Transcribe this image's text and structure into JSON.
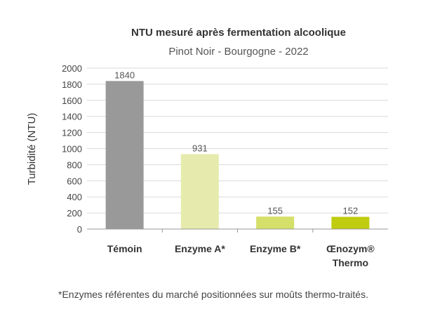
{
  "chart_data": {
    "type": "bar",
    "title": "NTU mesuré après fermentation alcoolique",
    "subtitle": "Pinot Noir - Bourgogne - 2022",
    "ylabel": "Turbidité (NTU)",
    "xlabel": "",
    "ylim": [
      0,
      2000
    ],
    "yticks": [
      0,
      200,
      400,
      600,
      800,
      1000,
      1200,
      1400,
      1600,
      1800,
      2000
    ],
    "grid": true,
    "categories": [
      {
        "lines": [
          "Témoin"
        ]
      },
      {
        "lines": [
          "Enzyme A*"
        ]
      },
      {
        "lines": [
          "Enzyme B*"
        ]
      },
      {
        "lines": [
          "Œnozym®",
          "Thermo"
        ]
      }
    ],
    "values": [
      1840,
      931,
      155,
      152
    ],
    "value_labels": [
      "1840",
      "931",
      "155",
      "152"
    ],
    "colors": [
      "#999999",
      "#e6ebad",
      "#d4e06a",
      "#bfcc10"
    ]
  },
  "footnote": "*Enzymes référentes du marché positionnées sur moûts thermo-traités."
}
